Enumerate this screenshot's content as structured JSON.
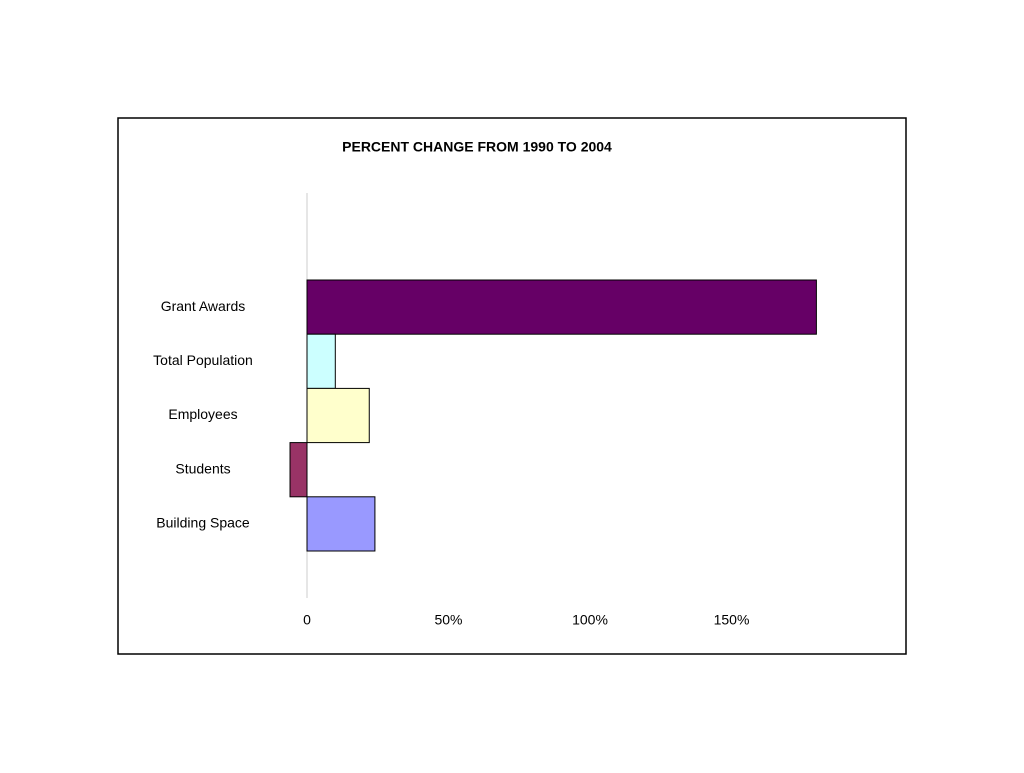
{
  "chart_data": {
    "type": "bar",
    "orientation": "horizontal",
    "title": "PERCENT CHANGE FROM 1990 TO 2004",
    "categories": [
      "Grant Awards",
      "Total Population",
      "Employees",
      "Students",
      "Building Space"
    ],
    "values": [
      180,
      10,
      22,
      -6,
      24
    ],
    "colors": [
      "#660066",
      "#ccffff",
      "#ffffcc",
      "#993366",
      "#9999ff"
    ],
    "xlim": [
      -10,
      190
    ],
    "xticks": [
      0,
      {
        "value": 50,
        "label": "50%"
      },
      {
        "value": 100,
        "label": "100%"
      },
      {
        "value": 150,
        "label": "150%"
      }
    ],
    "grid": false
  }
}
